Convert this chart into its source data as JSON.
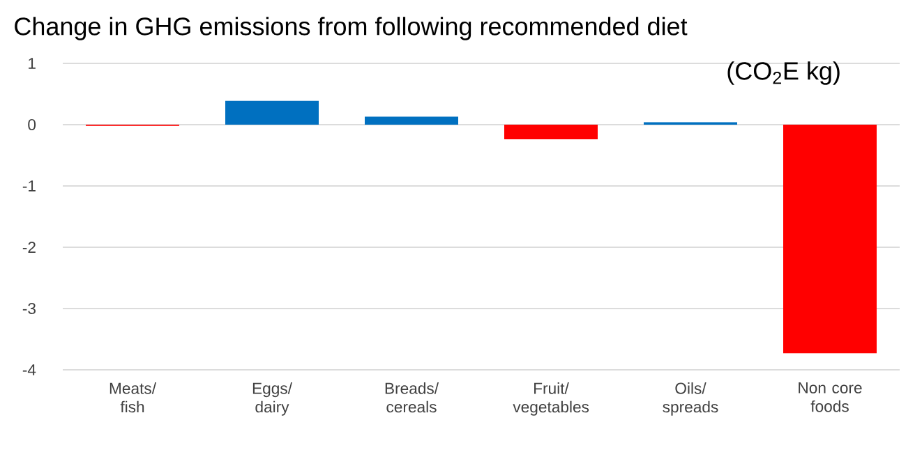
{
  "chart_data": {
    "type": "bar",
    "title": "Change in GHG emissions from following recommended diet",
    "subtitle": "(CO$_{2}$E kg)",
    "categories": [
      "Meats/ fish",
      "Eggs/ dairy",
      "Breads/ cereals",
      "Fruit/ vegetables",
      "Oils/ spreads",
      "Non core foods"
    ],
    "values": [
      -0.02,
      0.39,
      0.13,
      -0.24,
      0.04,
      -3.73
    ],
    "colors": [
      "#ff0000",
      "#0070c0",
      "#0070c0",
      "#ff0000",
      "#0070c0",
      "#ff0000"
    ],
    "ylim": [
      -4,
      1
    ],
    "yticks": [
      -4,
      -3,
      -2,
      -1,
      0,
      1
    ],
    "grid": "y"
  }
}
